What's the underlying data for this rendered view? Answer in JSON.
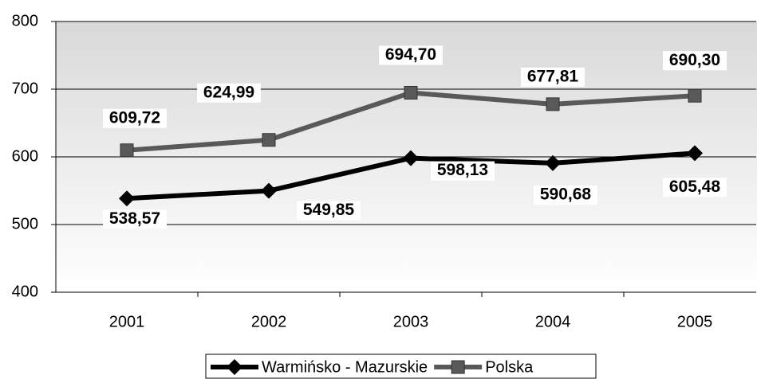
{
  "chart_data": {
    "type": "line",
    "categories": [
      "2001",
      "2002",
      "2003",
      "2004",
      "2005"
    ],
    "series": [
      {
        "name": "Warmińsko - Mazurskie",
        "color": "#000000",
        "marker": "diamond",
        "values": [
          538.57,
          549.85,
          598.13,
          590.68,
          605.48
        ],
        "value_labels": [
          "538,57",
          "549,85",
          "598,13",
          "590,68",
          "605,48"
        ]
      },
      {
        "name": "Polska",
        "color": "#595959",
        "marker": "square",
        "values": [
          609.72,
          624.99,
          694.7,
          677.81,
          690.3
        ],
        "value_labels": [
          "609,72",
          "624,99",
          "694,70",
          "677,81",
          "690,30"
        ]
      }
    ],
    "ylim": [
      400,
      800
    ],
    "yticks": [
      400,
      500,
      600,
      700,
      800
    ],
    "grid": true,
    "legend": "bottom"
  }
}
